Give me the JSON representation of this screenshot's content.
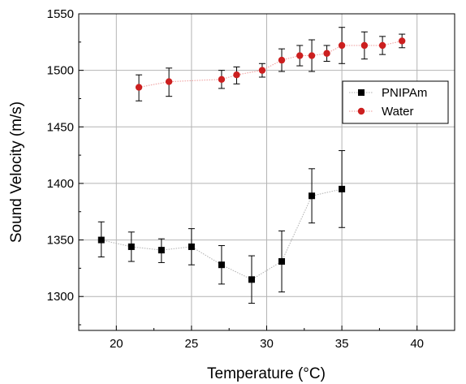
{
  "chart_data": {
    "type": "scatter",
    "title": "",
    "xlabel": "Temperature (°C)",
    "ylabel": "Sound Velocity (m/s)",
    "xlim": [
      17.5,
      42.5
    ],
    "ylim": [
      1270,
      1550
    ],
    "xticks": [
      20,
      25,
      30,
      35,
      40
    ],
    "yticks": [
      1300,
      1350,
      1400,
      1450,
      1500,
      1550
    ],
    "grid": true,
    "legend_position": "upper-right",
    "series": [
      {
        "name": "PNIPAm",
        "marker": "square",
        "color": "#000000",
        "line_color": "#b0b0b0",
        "x": [
          19,
          21,
          23,
          25,
          27,
          29,
          31,
          33,
          35
        ],
        "y": [
          1350,
          1344,
          1341,
          1344,
          1328,
          1315,
          1331,
          1389,
          1395
        ],
        "err_low": [
          1335,
          1331,
          1330,
          1328,
          1311,
          1294,
          1304,
          1365,
          1361
        ],
        "err_high": [
          1366,
          1357,
          1351,
          1360,
          1345,
          1336,
          1358,
          1413,
          1429
        ]
      },
      {
        "name": "Water",
        "marker": "circle",
        "color": "#cc1f1f",
        "line_color": "#ee9999",
        "x": [
          21.5,
          23.5,
          27,
          28,
          29.7,
          31,
          32.2,
          33,
          34,
          35,
          36.5,
          37.7,
          39
        ],
        "y": [
          1485,
          1490,
          1492,
          1496,
          1500,
          1509,
          1513,
          1513,
          1515,
          1522,
          1522,
          1522,
          1526
        ],
        "err_low": [
          1473,
          1477,
          1484,
          1488,
          1494,
          1499,
          1504,
          1499,
          1508,
          1506,
          1510,
          1514,
          1520
        ],
        "err_high": [
          1496,
          1502,
          1500,
          1503,
          1506,
          1519,
          1522,
          1527,
          1522,
          1538,
          1534,
          1530,
          1532
        ]
      }
    ]
  }
}
